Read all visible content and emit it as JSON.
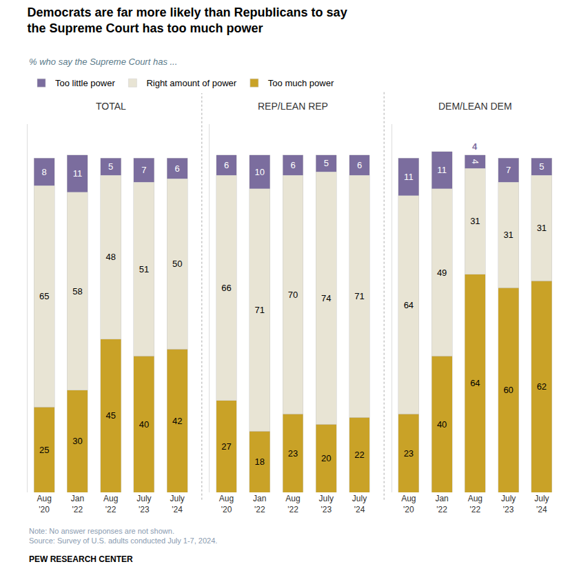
{
  "title": "Democrats are far more likely than Republicans to say\nthe Supreme Court has too much power",
  "subtitle": "% who say the Supreme Court has ...",
  "notes": [
    "Note: No answer responses are not shown.",
    "Source: Survey of U.S. adults conducted July 1-7, 2024."
  ],
  "source": "PEW RESEARCH CENTER",
  "chart_data": [
    {
      "type": "bar",
      "title": "TOTAL",
      "stacked": true,
      "data_labels": true,
      "grid": false,
      "tick_labels": "x",
      "ylim": [
        0,
        108
      ],
      "yticks": [],
      "categories": [
        "Aug\n'20",
        "Jan\n'22",
        "Aug\n'22",
        "July\n'23",
        "July\n'24"
      ],
      "series": [
        {
          "name": "Too much power",
          "color": "#c9a227",
          "values": [
            25,
            30,
            45,
            40,
            42
          ]
        },
        {
          "name": "Right amount of power",
          "color": "#e8e4d4",
          "values": [
            65,
            58,
            48,
            51,
            50
          ]
        },
        {
          "name": "Too little power",
          "color": "#7b6d9e",
          "values": [
            8,
            11,
            5,
            7,
            6
          ]
        }
      ]
    },
    {
      "type": "bar",
      "title": "REP/LEAN REP",
      "stacked": true,
      "data_labels": true,
      "grid": false,
      "tick_labels": "x",
      "ylim": [
        0,
        108
      ],
      "yticks": [],
      "categories": [
        "Aug\n'20",
        "Jan\n'22",
        "Aug\n'22",
        "July\n'23",
        "July\n'24"
      ],
      "series": [
        {
          "name": "Too much power",
          "color": "#c9a227",
          "values": [
            27,
            18,
            23,
            20,
            22
          ]
        },
        {
          "name": "Right amount of power",
          "color": "#e8e4d4",
          "values": [
            66,
            71,
            70,
            74,
            71
          ]
        },
        {
          "name": "Too little power",
          "color": "#7b6d9e",
          "values": [
            6,
            10,
            6,
            5,
            6
          ]
        }
      ]
    },
    {
      "type": "bar",
      "title": "DEM/LEAN DEM",
      "stacked": true,
      "data_labels": true,
      "grid": false,
      "tick_labels": "x",
      "ylim": [
        0,
        108
      ],
      "yticks": [],
      "categories": [
        "Aug\n'20",
        "Jan\n'22",
        "Aug\n'22",
        "July\n'23",
        "July\n'24"
      ],
      "series": [
        {
          "name": "Too much power",
          "color": "#c9a227",
          "values": [
            23,
            40,
            64,
            60,
            62
          ]
        },
        {
          "name": "Right amount of power",
          "color": "#e8e4d4",
          "values": [
            64,
            49,
            31,
            31,
            31
          ]
        },
        {
          "name": "Too little power",
          "color": "#7b6d9e",
          "values": [
            11,
            11,
            4,
            7,
            5
          ]
        }
      ],
      "annotations": [
        {
          "text": "4",
          "x": "Aug\n'22",
          "color": "#7b6d9e"
        }
      ]
    }
  ]
}
